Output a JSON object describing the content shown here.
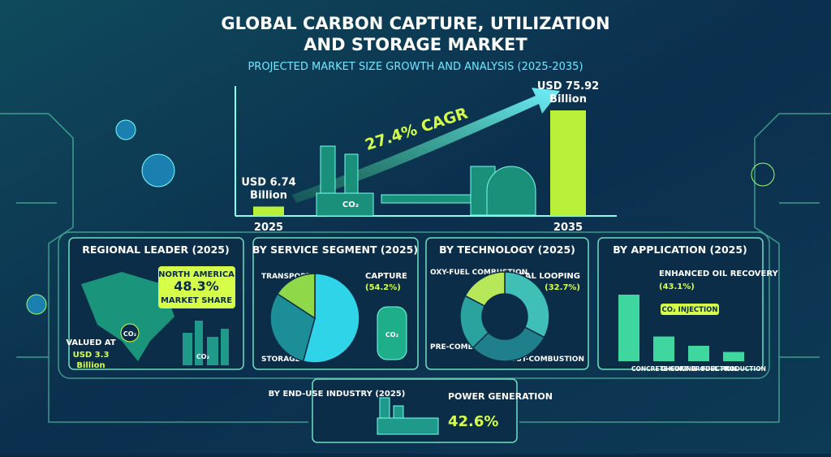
{
  "header": {
    "title_line1": "GLOBAL CARBON CAPTURE, UTILIZATION",
    "title_line2": "AND STORAGE MARKET",
    "subtitle": "PROJECTED MARKET SIZE GROWTH AND ANALYSIS (2025-2035)"
  },
  "co2": "CO₂",
  "growth": {
    "cagr": "27.4% CAGR",
    "color": "#b9f03a",
    "bars": [
      {
        "year": "2025",
        "amount": "USD 6.74",
        "unit": "Billion",
        "value": 6.74
      },
      {
        "year": "2035",
        "amount": "USD 75.92",
        "unit": "Billion",
        "value": 75.92
      }
    ]
  },
  "regional": {
    "title": "REGIONAL LEADER (2025)",
    "region": "NORTH AMERICA",
    "share": "48.3%",
    "share_note": "MARKET SHARE",
    "valued": "VALUED AT",
    "amount": "USD 3.3",
    "unit": "Billion"
  },
  "service": {
    "title": "BY SERVICE SEGMENT (2025)",
    "slices": [
      {
        "name": "CAPTURE",
        "label": "(54.2%)",
        "value": 54.2,
        "color": "#2fd4e8"
      },
      {
        "name": "STORAGE",
        "value": 30,
        "color": "#1b8e98"
      },
      {
        "name": "TRANSPORT",
        "value": 15.8,
        "color": "#8fd84a"
      }
    ]
  },
  "technology": {
    "title": "BY TECHNOLOGY (2025)",
    "slices": [
      {
        "name": "CHEMICAL LOOPING",
        "label": "(32.7%)",
        "value": 32.7,
        "color": "#3fbfb5"
      },
      {
        "name": "POST-COMBUSTION",
        "value": 30,
        "color": "#1f7f8a"
      },
      {
        "name": "PRE-COMBUSTION",
        "value": 20,
        "color": "#2aa39f"
      },
      {
        "name": "OXY-FUEL COMBUSTION",
        "value": 17.3,
        "color": "#b6e85a"
      }
    ]
  },
  "application": {
    "title": "BY APPLICATION (2025)",
    "lead_name": "ENHANCED OIL RECOVERY",
    "lead_label": "(43.1%)",
    "injection": "CO₂ INJECTION",
    "categories": [
      null,
      "CONCRETE CURING",
      "CHEOKT PRODUCTION",
      "FUEL PRODUCTION"
    ],
    "values": [
      43.1,
      16,
      10,
      6
    ],
    "color": "#3fd6a0"
  },
  "end_use": {
    "title": "BY END-USE INDUSTRY (2025)",
    "segment": "POWER GENERATION",
    "share": "42.6%"
  }
}
